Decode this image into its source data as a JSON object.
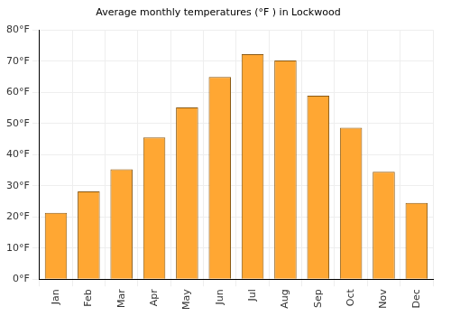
{
  "chart_data": {
    "type": "bar",
    "title": "Average monthly temperatures (°F ) in Lockwood",
    "categories": [
      "Jan",
      "Feb",
      "Mar",
      "Apr",
      "May",
      "Jun",
      "Jul",
      "Aug",
      "Sep",
      "Oct",
      "Nov",
      "Dec"
    ],
    "values": [
      21.3,
      28.2,
      35.3,
      45.5,
      55.1,
      64.9,
      72.2,
      70.2,
      58.9,
      48.6,
      34.5,
      24.5
    ],
    "color": "#ffa733",
    "ylim": [
      0,
      80
    ],
    "yticks": [
      {
        "value": 0,
        "label": "0°F"
      },
      {
        "value": 10,
        "label": "10°F"
      },
      {
        "value": 20,
        "label": "20°F"
      },
      {
        "value": 30,
        "label": "30°F"
      },
      {
        "value": 40,
        "label": "40°F"
      },
      {
        "value": 50,
        "label": "50°F"
      },
      {
        "value": 60,
        "label": "60°F"
      },
      {
        "value": 70,
        "label": "70°F"
      },
      {
        "value": 80,
        "label": "80°F"
      }
    ],
    "grid": true
  }
}
